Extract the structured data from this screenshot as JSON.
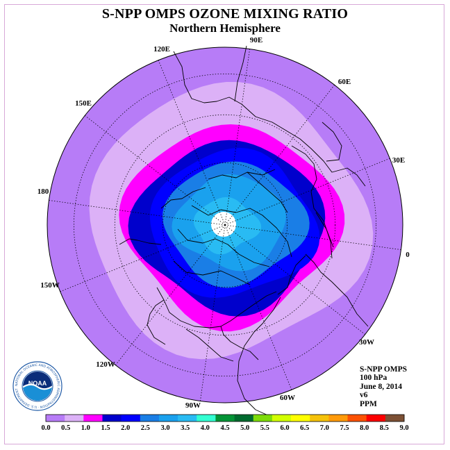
{
  "title": "S-NPP OMPS OZONE MIXING RATIO",
  "subtitle": "Northern Hemisphere",
  "info": {
    "instrument": "S-NPP OMPS",
    "level": "100 hPa",
    "date": "June 8, 2014",
    "version": "v6",
    "units": "PPM"
  },
  "meridian_labels": [
    "90E",
    "60E",
    "30E",
    "0",
    "30W",
    "60W",
    "90W",
    "120W",
    "150W",
    "180",
    "150E",
    "120E"
  ],
  "logo_text": "NOAA",
  "logo_ring_text": "NATIONAL OCEANIC AND ATMOSPHERIC ADMINISTRATION · U.S. DEPARTMENT OF COMMERCE",
  "colorbar": {
    "ticks": [
      "0.0",
      "0.5",
      "1.0",
      "1.5",
      "2.0",
      "2.5",
      "3.0",
      "3.5",
      "4.0",
      "4.5",
      "5.0",
      "5.5",
      "6.0",
      "6.5",
      "7.0",
      "7.5",
      "8.0",
      "8.5",
      "9.0"
    ],
    "colors": [
      "#b77cf7",
      "#dcb1f7",
      "#ff00ff",
      "#0000cc",
      "#0000ff",
      "#1a7ee6",
      "#1aa1ee",
      "#29bbf3",
      "#33ffd2",
      "#039436",
      "#006a2e",
      "#7ddb09",
      "#d2ff00",
      "#ffff00",
      "#f5c20a",
      "#ff9a0a",
      "#fc5203",
      "#fc0000",
      "#7c5034"
    ]
  },
  "chart_data": {
    "type": "map",
    "projection": "north-polar-stereographic",
    "variable": "Ozone mixing ratio",
    "level": "100 hPa",
    "units": "PPM",
    "date": "June 8, 2014",
    "contour_bins": [
      {
        "range": [
          0.0,
          0.5
        ],
        "color": "#b77cf7",
        "region": "outer ring, lowest latitudes"
      },
      {
        "range": [
          0.5,
          1.0
        ],
        "color": "#dcb1f7",
        "region": "mid-latitude band"
      },
      {
        "range": [
          1.0,
          1.5
        ],
        "color": "#ff00ff",
        "region": "band around polar vortex"
      },
      {
        "range": [
          1.5,
          2.0
        ],
        "color": "#0000cc",
        "region": "inner band"
      },
      {
        "range": [
          2.0,
          2.5
        ],
        "color": "#0000ff",
        "region": "inner band"
      },
      {
        "range": [
          2.5,
          3.0
        ],
        "color": "#1a7ee6",
        "region": "high latitudes"
      },
      {
        "range": [
          3.0,
          3.5
        ],
        "color": "#1aa1ee",
        "region": "high latitudes"
      },
      {
        "range": [
          3.5,
          4.0
        ],
        "color": "#29bbf3",
        "region": "near pole"
      }
    ],
    "missing_data": "white disk at pole"
  }
}
